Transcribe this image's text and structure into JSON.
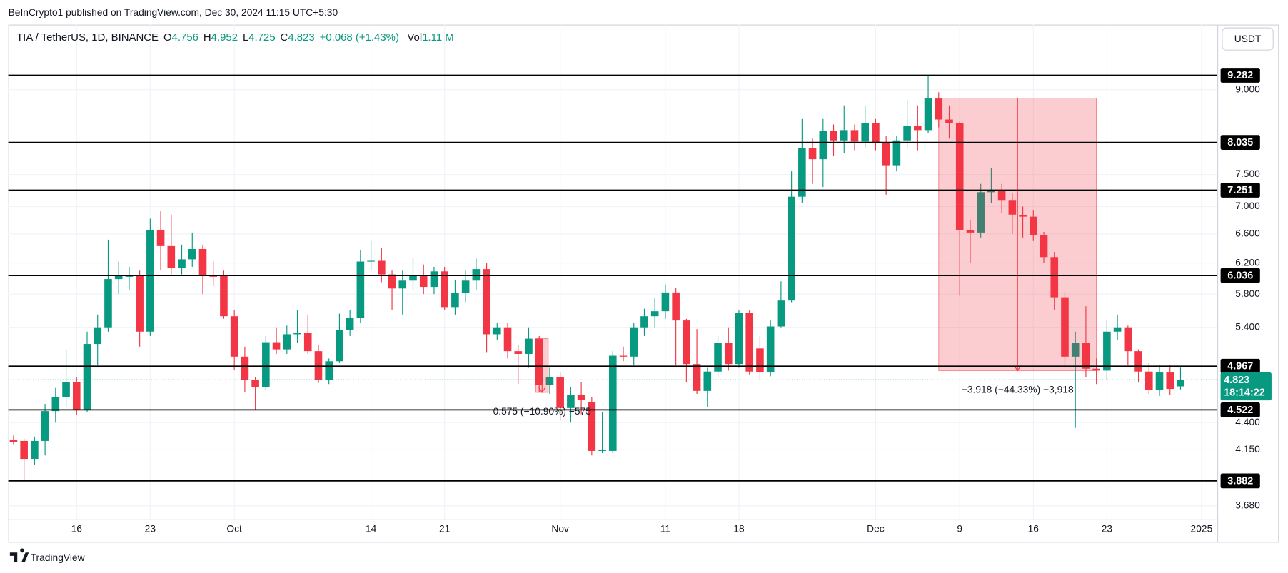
{
  "header": {
    "publisher": "BeInCrypto1 published on TradingView.com, Dec 30, 2024 11:15 UTC+5:30",
    "symbol": "TIA / TetherUS, 1D, BINANCE",
    "currency": "USDT",
    "brand": "TradingView"
  },
  "chart_data": {
    "type": "candlestick",
    "log": true,
    "grid": true,
    "up_color": "#089981",
    "down_color": "#f23645",
    "ohlc_labels": [
      "O",
      "H",
      "L",
      "C"
    ],
    "change": "+0.068 (+1.43%)",
    "volume_label": "Vol",
    "volume": "1.11 M",
    "countdown": "18:14:22",
    "categories": [
      null,
      null,
      null,
      null,
      null,
      null,
      "16",
      null,
      null,
      null,
      null,
      null,
      null,
      "23",
      null,
      null,
      null,
      null,
      null,
      null,
      null,
      "Oct",
      null,
      null,
      null,
      null,
      null,
      null,
      null,
      null,
      null,
      null,
      null,
      null,
      "14",
      null,
      null,
      null,
      null,
      null,
      null,
      "21",
      null,
      null,
      null,
      null,
      null,
      null,
      null,
      null,
      null,
      null,
      "Nov",
      null,
      null,
      null,
      null,
      null,
      null,
      null,
      null,
      null,
      "11",
      null,
      null,
      null,
      null,
      null,
      null,
      "18",
      null,
      null,
      null,
      null,
      null,
      null,
      null,
      null,
      null,
      null,
      null,
      null,
      "Dec",
      null,
      null,
      null,
      null,
      null,
      null,
      null,
      "9",
      null,
      null,
      null,
      null,
      null,
      null,
      "16",
      null,
      null,
      null,
      null,
      null,
      null,
      "23",
      null,
      null,
      null,
      null,
      null,
      null,
      null,
      null,
      "2025",
      null
    ],
    "open": [
      4.24,
      4.23,
      4.07,
      4.23,
      4.51,
      4.65,
      4.8,
      4.52,
      5.21,
      5.4,
      5.99,
      6.02,
      6.04,
      5.35,
      6.66,
      6.43,
      6.13,
      6.25,
      6.39,
      6.04,
      6.04,
      5.53,
      5.07,
      4.82,
      4.75,
      5.23,
      5.15,
      5.32,
      5.34,
      5.13,
      4.82,
      5.02,
      5.37,
      5.51,
      6.22,
      6.23,
      6.05,
      5.87,
      5.97,
      6.04,
      5.89,
      6.09,
      5.64,
      5.81,
      5.97,
      6.12,
      5.32,
      5.4,
      5.13,
      5.1,
      5.27,
      4.77,
      4.85,
      4.54,
      4.67,
      4.6,
      4.14,
      4.14,
      5.08,
      5.07,
      5.4,
      5.53,
      5.59,
      5.82,
      5.48,
      4.99,
      4.71,
      4.91,
      5.22,
      4.99,
      5.57,
      5.16,
      4.9,
      5.41,
      5.72,
      7.15,
      7.94,
      7.75,
      8.23,
      8.07,
      8.25,
      8.05,
      8.37,
      8.04,
      7.65,
      8.07,
      8.33,
      8.25,
      8.83,
      8.44,
      8.37,
      6.66,
      6.62,
      7.22,
      7.24,
      7.1,
      6.87,
      6.85,
      6.58,
      6.28,
      5.76,
      5.07,
      5.22,
      4.94,
      4.92,
      5.35,
      5.4,
      5.13,
      4.91,
      4.72,
      4.9,
      4.756,
      null,
      null,
      null
    ],
    "high": [
      4.28,
      4.25,
      4.27,
      4.58,
      4.74,
      5.15,
      4.85,
      5.35,
      5.55,
      6.52,
      6.22,
      6.15,
      6.1,
      6.82,
      6.93,
      6.88,
      6.45,
      6.62,
      6.45,
      6.22,
      6.1,
      5.6,
      5.18,
      4.85,
      5.3,
      5.4,
      5.42,
      5.6,
      5.55,
      5.2,
      5.05,
      5.56,
      5.6,
      6.38,
      6.5,
      6.4,
      6.1,
      6.1,
      6.27,
      6.18,
      6.15,
      6.15,
      5.98,
      6.1,
      6.26,
      6.2,
      5.45,
      5.45,
      5.2,
      5.4,
      5.3,
      4.95,
      4.9,
      4.75,
      4.8,
      4.65,
      4.5,
      5.13,
      5.18,
      5.45,
      5.62,
      5.75,
      5.92,
      5.88,
      5.5,
      5.38,
      4.95,
      5.3,
      5.4,
      5.6,
      5.6,
      5.3,
      5.48,
      5.96,
      7.55,
      8.45,
      8.1,
      8.45,
      8.35,
      8.7,
      8.35,
      8.7,
      8.45,
      8.15,
      8.15,
      8.8,
      8.7,
      9.28,
      8.95,
      8.7,
      8.4,
      6.8,
      7.35,
      7.6,
      7.35,
      7.2,
      7.0,
      6.95,
      6.63,
      6.35,
      5.83,
      5.35,
      5.65,
      5.05,
      5.48,
      5.55,
      5.42,
      5.15,
      5.0,
      4.98,
      4.98,
      4.952,
      null,
      null,
      null
    ],
    "low": [
      4.2,
      3.88,
      4.02,
      4.1,
      4.4,
      4.55,
      4.47,
      4.5,
      4.98,
      5.35,
      5.8,
      5.85,
      5.18,
      5.3,
      6.1,
      6.05,
      6.05,
      6.15,
      5.8,
      5.9,
      5.5,
      4.93,
      4.7,
      4.52,
      4.72,
      5.1,
      5.1,
      5.22,
      5.1,
      4.79,
      4.78,
      5.0,
      5.3,
      5.45,
      6.1,
      5.95,
      5.6,
      5.55,
      5.85,
      5.8,
      5.8,
      5.6,
      5.55,
      5.7,
      5.85,
      5.12,
      5.25,
      5.05,
      4.78,
      4.95,
      4.7,
      4.68,
      4.42,
      4.4,
      4.48,
      4.1,
      4.12,
      4.12,
      5.02,
      4.98,
      5.3,
      5.4,
      5.5,
      4.98,
      4.8,
      4.68,
      4.55,
      4.85,
      4.92,
      4.95,
      4.88,
      4.82,
      4.86,
      5.4,
      5.7,
      7.05,
      7.35,
      7.3,
      7.8,
      7.85,
      7.9,
      7.95,
      7.9,
      7.18,
      7.55,
      7.95,
      7.9,
      8.2,
      8.3,
      8.1,
      5.78,
      6.2,
      6.55,
      7.05,
      6.9,
      6.6,
      6.55,
      6.5,
      6.2,
      5.6,
      4.95,
      4.35,
      4.85,
      4.78,
      4.82,
      5.25,
      4.98,
      4.8,
      4.68,
      4.66,
      4.67,
      4.725,
      null,
      null,
      null
    ],
    "close": [
      4.22,
      4.07,
      4.23,
      4.51,
      4.65,
      4.8,
      4.52,
      5.21,
      5.4,
      5.99,
      6.04,
      6.03,
      5.35,
      6.66,
      6.43,
      6.13,
      6.25,
      6.39,
      6.04,
      6.02,
      5.53,
      5.07,
      4.82,
      4.75,
      5.23,
      5.15,
      5.32,
      5.34,
      5.13,
      4.82,
      5.02,
      5.37,
      5.51,
      6.22,
      6.23,
      6.05,
      5.87,
      5.97,
      6.04,
      5.89,
      6.09,
      5.64,
      5.81,
      5.97,
      6.12,
      5.32,
      5.4,
      5.13,
      5.1,
      5.27,
      4.77,
      4.85,
      4.54,
      4.67,
      4.62,
      4.14,
      4.15,
      5.08,
      5.07,
      5.4,
      5.53,
      5.59,
      5.82,
      5.48,
      4.99,
      4.71,
      4.91,
      5.22,
      4.99,
      5.57,
      4.91,
      4.9,
      5.41,
      5.72,
      7.15,
      7.94,
      7.75,
      8.23,
      8.07,
      8.25,
      8.05,
      8.37,
      8.04,
      7.65,
      8.07,
      8.33,
      8.25,
      8.83,
      8.44,
      8.37,
      6.66,
      6.62,
      7.22,
      7.24,
      7.1,
      6.88,
      6.85,
      6.58,
      6.28,
      5.76,
      5.07,
      5.22,
      4.94,
      4.92,
      5.35,
      5.4,
      5.13,
      4.91,
      4.72,
      4.9,
      4.73,
      4.823,
      null,
      null,
      null
    ],
    "ylim": [
      3.578,
      10.35
    ],
    "yticks": [
      {
        "value": 9,
        "label": "9.000"
      },
      {
        "value": 7.5,
        "label": "7.500"
      },
      {
        "value": 7,
        "label": "7.000"
      },
      {
        "value": 6.6,
        "label": "6.600"
      },
      {
        "value": 6.2,
        "label": "6.200"
      },
      {
        "value": 5.8,
        "label": "5.800"
      },
      {
        "value": 5.4,
        "label": "5.400"
      },
      {
        "value": 4.4,
        "label": "4.400"
      },
      {
        "value": 4.15,
        "label": "4.150"
      },
      {
        "value": 3.68,
        "label": "3.680"
      }
    ],
    "levels": [
      9.282,
      8.035,
      7.251,
      6.036,
      4.967,
      4.522,
      3.882
    ],
    "measures": [
      {
        "label": "−3.918 (−44.33%) −3,918",
        "from": 8.838,
        "to": 4.92
      },
      {
        "label": "0.575 (−10.90%) −575",
        "from": 5.27,
        "to": 4.695
      }
    ]
  }
}
